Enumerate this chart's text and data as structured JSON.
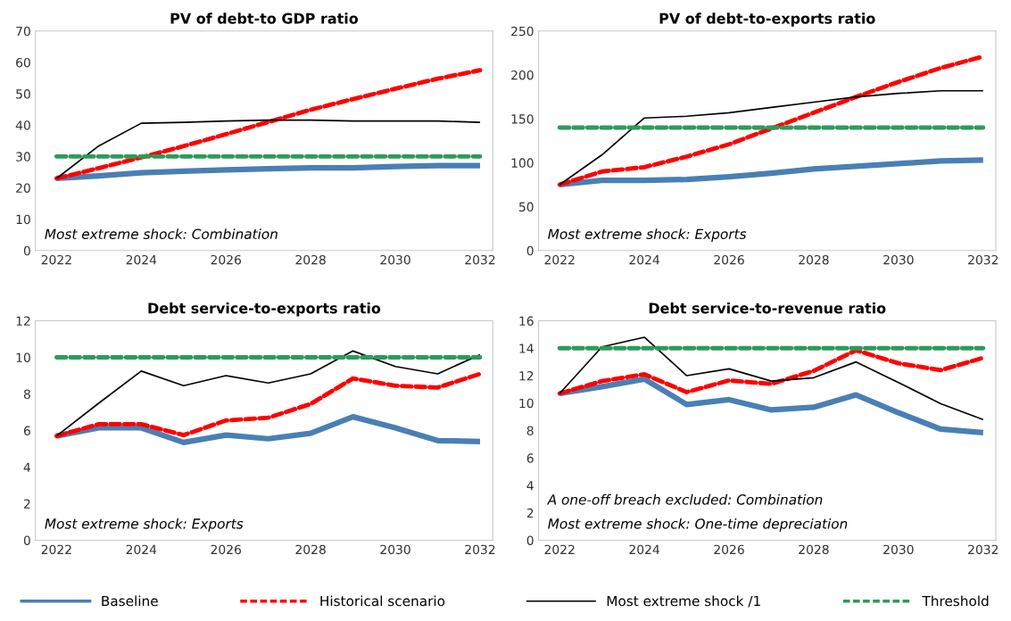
{
  "chart_data": [
    {
      "type": "line",
      "title": "PV of debt-to GDP ratio",
      "x": [
        2022,
        2023,
        2024,
        2025,
        2026,
        2027,
        2028,
        2029,
        2030,
        2031,
        2032
      ],
      "xlim": [
        2021.5,
        2032.3
      ],
      "xticks": [
        2022,
        2024,
        2026,
        2028,
        2030,
        2032
      ],
      "ylim": [
        0,
        70
      ],
      "yticks": [
        0,
        10,
        20,
        30,
        40,
        50,
        60,
        70
      ],
      "legend": "bottom",
      "annotations": [
        "Most extreme shock: Combination"
      ],
      "series": [
        {
          "name": "Baseline",
          "color": "#4a7fb5",
          "line_style": "solid",
          "values": [
            23,
            23.8,
            24.8,
            25.3,
            25.7,
            26.1,
            26.4,
            26.4,
            26.8,
            27.1,
            27.1
          ]
        },
        {
          "name": "Historical scenario",
          "color": "#ff0000",
          "line_style": "dashed",
          "values": [
            23,
            26.3,
            29.7,
            33.3,
            37.1,
            41,
            44.9,
            48.3,
            51.6,
            54.8,
            57.5
          ]
        },
        {
          "name": "Most extreme shock /1",
          "color": "#000000",
          "line_style": "solid",
          "values": [
            23,
            33.4,
            40.6,
            40.9,
            41.3,
            41.6,
            41.6,
            41.3,
            41.3,
            41.3,
            40.9
          ]
        },
        {
          "name": "Threshold",
          "color": "#2e9a5a",
          "line_style": "dashed",
          "values": [
            30,
            30,
            30,
            30,
            30,
            30,
            30,
            30,
            30,
            30,
            30
          ]
        }
      ]
    },
    {
      "type": "line",
      "title": "PV of debt-to-exports ratio",
      "x": [
        2022,
        2023,
        2024,
        2025,
        2026,
        2027,
        2028,
        2029,
        2030,
        2031,
        2032
      ],
      "xlim": [
        2021.5,
        2032.3
      ],
      "xticks": [
        2022,
        2024,
        2026,
        2028,
        2030,
        2032
      ],
      "ylim": [
        0,
        250
      ],
      "yticks": [
        0,
        50,
        100,
        150,
        200,
        250
      ],
      "annotations": [
        "Most extreme shock: Exports"
      ],
      "series": [
        {
          "color": "#4a7fb5",
          "line_style": "solid",
          "values": [
            75,
            80,
            80,
            81,
            84,
            88,
            93,
            96,
            99,
            102,
            103
          ]
        },
        {
          "color": "#ff0000",
          "line_style": "dashed",
          "values": [
            75,
            90,
            95,
            107,
            121,
            139,
            157,
            175,
            192,
            208,
            221
          ]
        },
        {
          "color": "#000000",
          "line_style": "solid",
          "values": [
            75,
            109,
            151,
            153,
            157,
            163,
            169,
            175,
            179,
            182,
            182
          ]
        },
        {
          "color": "#2e9a5a",
          "line_style": "dashed",
          "values": [
            140,
            140,
            140,
            140,
            140,
            140,
            140,
            140,
            140,
            140,
            140
          ]
        }
      ]
    },
    {
      "type": "line",
      "title": "Debt service-to-exports ratio",
      "x": [
        2022,
        2023,
        2024,
        2025,
        2026,
        2027,
        2028,
        2029,
        2030,
        2031,
        2032
      ],
      "xlim": [
        2021.5,
        2032.3
      ],
      "xticks": [
        2022,
        2024,
        2026,
        2028,
        2030,
        2032
      ],
      "ylim": [
        0,
        12
      ],
      "yticks": [
        0,
        2,
        4,
        6,
        8,
        10,
        12
      ],
      "annotations": [
        "Most extreme shock: Exports"
      ],
      "series": [
        {
          "color": "#4a7fb5",
          "line_style": "solid",
          "values": [
            5.7,
            6.15,
            6.15,
            5.35,
            5.75,
            5.55,
            5.85,
            6.75,
            6.15,
            5.45,
            5.4
          ]
        },
        {
          "color": "#ff0000",
          "line_style": "dashed",
          "values": [
            5.7,
            6.35,
            6.35,
            5.75,
            6.55,
            6.7,
            7.45,
            8.85,
            8.45,
            8.35,
            9.1
          ]
        },
        {
          "color": "#000000",
          "line_style": "solid",
          "values": [
            5.7,
            7.5,
            9.25,
            8.45,
            9.0,
            8.6,
            9.1,
            10.35,
            9.5,
            9.1,
            10.15
          ]
        },
        {
          "color": "#2e9a5a",
          "line_style": "dashed",
          "values": [
            10,
            10,
            10,
            10,
            10,
            10,
            10,
            10,
            10,
            10,
            10
          ]
        }
      ]
    },
    {
      "type": "line",
      "title": "Debt service-to-revenue ratio",
      "x": [
        2022,
        2023,
        2024,
        2025,
        2026,
        2027,
        2028,
        2029,
        2030,
        2031,
        2032
      ],
      "xlim": [
        2021.5,
        2032.3
      ],
      "xticks": [
        2022,
        2024,
        2026,
        2028,
        2030,
        2032
      ],
      "ylim": [
        0,
        16
      ],
      "yticks": [
        0,
        2,
        4,
        6,
        8,
        10,
        12,
        14,
        16
      ],
      "annotations": [
        "A one-off breach excluded: Combination",
        "Most extreme shock: One-time depreciation"
      ],
      "series": [
        {
          "color": "#4a7fb5",
          "line_style": "solid",
          "values": [
            10.7,
            11.2,
            11.75,
            9.9,
            10.25,
            9.5,
            9.7,
            10.6,
            9.3,
            8.1,
            7.85
          ]
        },
        {
          "color": "#ff0000",
          "line_style": "dashed",
          "values": [
            10.7,
            11.6,
            12.1,
            10.8,
            11.65,
            11.4,
            12.35,
            13.85,
            12.9,
            12.4,
            13.3
          ]
        },
        {
          "color": "#000000",
          "line_style": "solid",
          "values": [
            10.7,
            14.1,
            14.8,
            12.0,
            12.5,
            11.6,
            11.85,
            13.0,
            11.5,
            9.95,
            8.8
          ]
        },
        {
          "color": "#2e9a5a",
          "line_style": "dashed",
          "values": [
            14,
            14,
            14,
            14,
            14,
            14,
            14,
            14,
            14,
            14,
            14
          ]
        }
      ]
    }
  ]
}
